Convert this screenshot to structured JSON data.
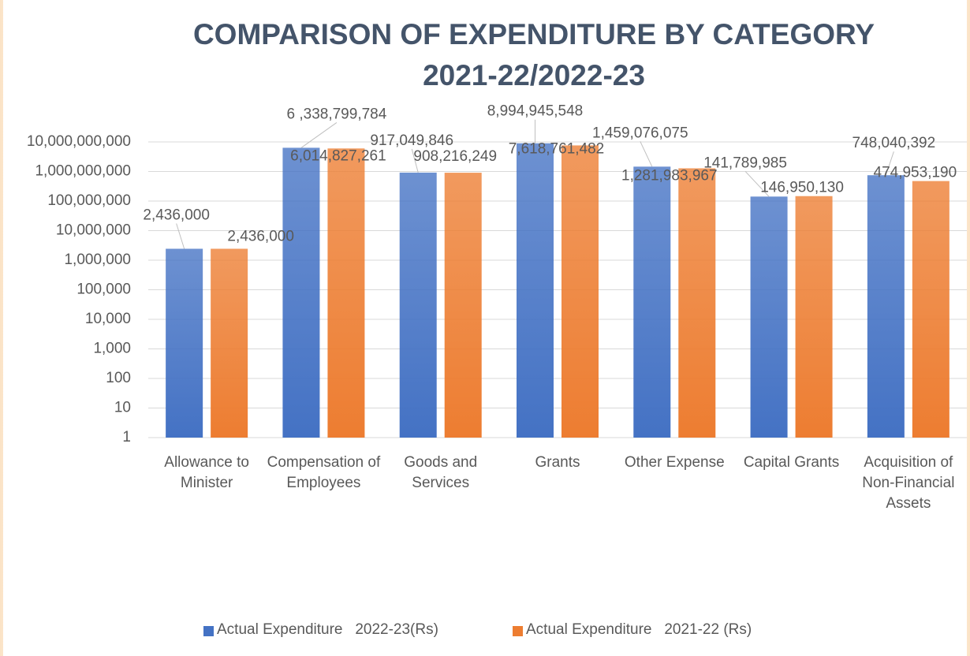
{
  "chart_data": {
    "type": "bar",
    "title": "COMPARISON OF EXPENDITURE BY CATEGORY 2021-22/2022-23",
    "log_scale": true,
    "grid": true,
    "legend": "bottom",
    "categories": [
      "Allowance to Minister",
      "Compensation of Employees",
      "Goods and Services",
      "Grants",
      "Other Expense",
      "Capital Grants",
      "Acquisition of Non-Financial Assets"
    ],
    "series": [
      {
        "name": "Actual Expenditure   2022-23(Rs)",
        "color": "#4472c4",
        "values": [
          2436000,
          6338799784,
          917049846,
          8994945548,
          1459076075,
          141789985,
          748040392
        ],
        "value_labels": [
          "2,436,000",
          "6 ,338,799,784",
          "917,049,846",
          "8,994,945,548",
          "1,459,076,075",
          "141,789,985",
          "748,040,392"
        ]
      },
      {
        "name": "Actual Expenditure   2021-22 (Rs)",
        "color": "#ed7d31",
        "values": [
          2436000,
          6014827261,
          908216249,
          7618761482,
          1281983967,
          146950130,
          474953190
        ],
        "value_labels": [
          "2,436,000",
          "6,014,827,261",
          "908,216,249",
          "7,618,761,482",
          "1,281,983,967",
          "146,950,130",
          "474,953,190"
        ]
      }
    ],
    "ylim": [
      1,
      10000000000
    ],
    "yticks": [
      1,
      10,
      100,
      {
        "value": 1000,
        "label": "1,000"
      },
      {
        "value": 10000,
        "label": "10,000"
      },
      {
        "value": 100000,
        "label": "100,000"
      },
      {
        "value": 1000000,
        "label": "1,000,000"
      },
      {
        "value": 10000000,
        "label": "10,000,000"
      },
      {
        "value": 100000000,
        "label": "100,000,000"
      },
      {
        "value": 1000000000,
        "label": "1,000,000,000"
      },
      {
        "value": 10000000000,
        "label": "10,000,000,000"
      }
    ]
  }
}
